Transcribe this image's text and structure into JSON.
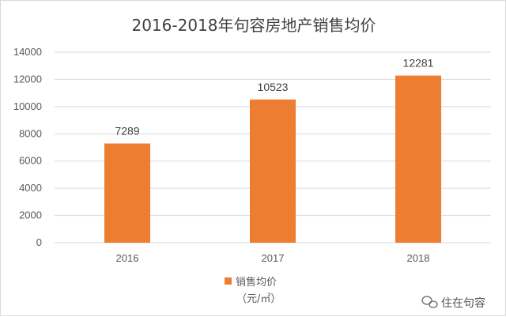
{
  "chart_data": {
    "type": "bar",
    "title": "2016-2018年句容房地产销售均价",
    "categories": [
      "2016",
      "2017",
      "2018"
    ],
    "series": [
      {
        "name": "销售均价",
        "values": [
          7289,
          10523,
          12281
        ]
      }
    ],
    "data_labels": [
      "7289",
      "10523",
      "12281"
    ],
    "ylim": [
      0,
      14000
    ],
    "yticks": [
      0,
      2000,
      4000,
      6000,
      8000,
      10000,
      12000,
      14000
    ],
    "ytick_labels": [
      "0",
      "2000",
      "4000",
      "6000",
      "8000",
      "10000",
      "12000",
      "14000"
    ],
    "grid": true,
    "legend": {
      "label": "销售均价",
      "unit": "（元/㎡）",
      "position": "bottom-center"
    },
    "bar_color": "#ED7D31",
    "grid_color": "#D9D9D9"
  },
  "watermark": {
    "icon": "wechat-icon",
    "text": "住在句容"
  }
}
